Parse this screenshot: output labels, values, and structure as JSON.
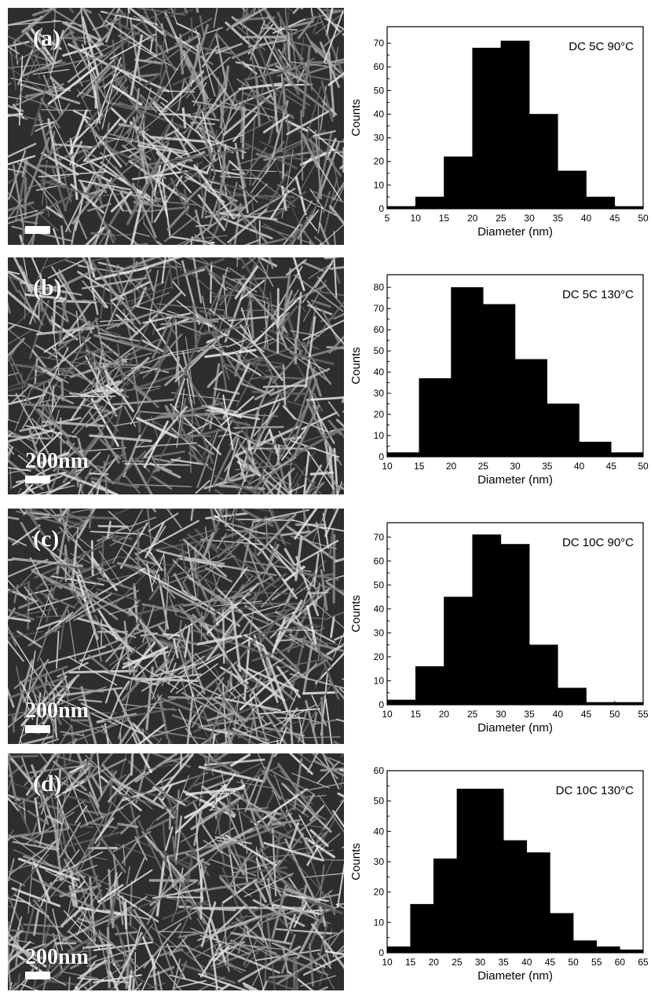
{
  "figure": {
    "panels": [
      {
        "label": "(a)",
        "scale_text": ""
      },
      {
        "label": "(b)",
        "scale_text": "200nm"
      },
      {
        "label": "(c)",
        "scale_text": "200nm"
      },
      {
        "label": "(d)",
        "scale_text": "200nm"
      }
    ]
  },
  "chart_data": [
    {
      "type": "bar",
      "title": "DC 5C 90°C",
      "xlabel": "Diameter (nm)",
      "ylabel": "Counts",
      "bins": [
        [
          5,
          10
        ],
        [
          10,
          15
        ],
        [
          15,
          20
        ],
        [
          20,
          25
        ],
        [
          25,
          30
        ],
        [
          30,
          35
        ],
        [
          35,
          40
        ],
        [
          40,
          45
        ],
        [
          45,
          50
        ]
      ],
      "values": [
        1,
        5,
        22,
        68,
        71,
        40,
        16,
        5,
        1
      ],
      "xlim": [
        5,
        50
      ],
      "ylim": [
        0,
        77
      ],
      "xticks": [
        5,
        10,
        15,
        20,
        25,
        30,
        35,
        40,
        45,
        50
      ],
      "yticks": [
        0,
        10,
        20,
        30,
        40,
        50,
        60,
        70
      ],
      "color": "#000000"
    },
    {
      "type": "bar",
      "title": "DC 5C 130°C",
      "xlabel": "Diameter (nm)",
      "ylabel": "Counts",
      "bins": [
        [
          10,
          15
        ],
        [
          15,
          20
        ],
        [
          20,
          25
        ],
        [
          25,
          30
        ],
        [
          30,
          35
        ],
        [
          35,
          40
        ],
        [
          40,
          45
        ],
        [
          45,
          50
        ]
      ],
      "values": [
        2,
        37,
        80,
        72,
        46,
        25,
        7,
        2
      ],
      "xlim": [
        10,
        50
      ],
      "ylim": [
        0,
        86
      ],
      "xticks": [
        10,
        15,
        20,
        25,
        30,
        35,
        40,
        45,
        50
      ],
      "yticks": [
        0,
        10,
        20,
        30,
        40,
        50,
        60,
        70,
        80
      ],
      "color": "#000000"
    },
    {
      "type": "bar",
      "title": "DC 10C 90°C",
      "xlabel": "Diameter (nm)",
      "ylabel": "Counts",
      "bins": [
        [
          10,
          15
        ],
        [
          15,
          20
        ],
        [
          20,
          25
        ],
        [
          25,
          30
        ],
        [
          30,
          35
        ],
        [
          35,
          40
        ],
        [
          40,
          45
        ],
        [
          45,
          50
        ],
        [
          50,
          55
        ]
      ],
      "values": [
        2,
        16,
        45,
        71,
        67,
        25,
        7,
        1,
        1
      ],
      "xlim": [
        10,
        55
      ],
      "ylim": [
        0,
        76
      ],
      "xticks": [
        10,
        15,
        20,
        25,
        30,
        35,
        40,
        45,
        50,
        55
      ],
      "yticks": [
        0,
        10,
        20,
        30,
        40,
        50,
        60,
        70
      ],
      "color": "#000000"
    },
    {
      "type": "bar",
      "title": "DC 10C 130°C",
      "xlabel": "Diameter (nm)",
      "ylabel": "Counts",
      "bins": [
        [
          10,
          15
        ],
        [
          15,
          20
        ],
        [
          20,
          25
        ],
        [
          25,
          30
        ],
        [
          30,
          35
        ],
        [
          35,
          40
        ],
        [
          40,
          45
        ],
        [
          45,
          50
        ],
        [
          50,
          55
        ],
        [
          55,
          60
        ],
        [
          60,
          65
        ]
      ],
      "values": [
        2,
        16,
        31,
        54,
        54,
        37,
        33,
        13,
        4,
        2,
        1
      ],
      "xlim": [
        10,
        65
      ],
      "ylim": [
        0,
        60
      ],
      "xticks": [
        10,
        15,
        20,
        25,
        30,
        35,
        40,
        45,
        50,
        55,
        60,
        65
      ],
      "yticks": [
        0,
        10,
        20,
        30,
        40,
        50,
        60
      ],
      "color": "#000000"
    }
  ]
}
